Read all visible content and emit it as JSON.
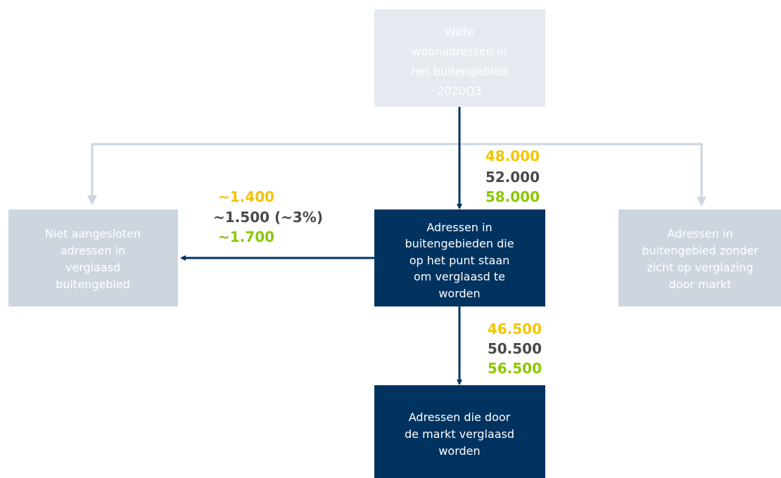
{
  "nodes": [
    {
      "label": [
        "Witte",
        "woonadressen in",
        "het buitengebied",
        "2020Q3"
      ]
    },
    {
      "label": [
        "Niet aangesloten",
        "adressen in",
        "verglaasd",
        "buitengebied"
      ]
    },
    {
      "label": [
        "Adressen in",
        "buitengebieden die",
        "op het punt staan",
        "om verglaasd te",
        "worden"
      ]
    },
    {
      "label": [
        "Adressen in",
        "buitengebied zonder",
        "zicht op verglazing",
        "door markt"
      ]
    },
    {
      "label": [
        "Adressen die door",
        "de markt verglaasd",
        "worden"
      ]
    }
  ],
  "flows": [
    {
      "low": "48.000",
      "mid": "52.000",
      "high": "58.000"
    },
    {
      "low": "~1.400",
      "mid": "~1.500 (~3%)",
      "high": "~1.700"
    },
    {
      "low": "46.500",
      "mid": "50.500",
      "high": "56.500"
    }
  ]
}
